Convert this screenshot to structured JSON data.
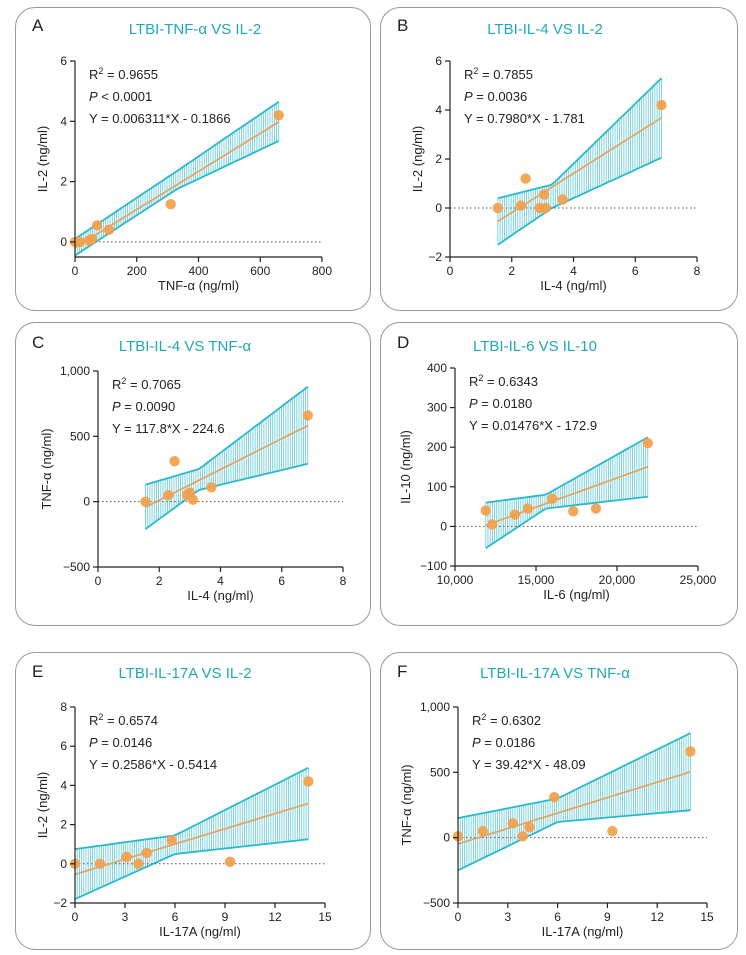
{
  "colors": {
    "band": "#2ab9cc",
    "fit": "#e1a566",
    "point": "#f2a04b",
    "title": "#1fa8b8"
  },
  "chart_data": [
    {
      "letter": "A",
      "title": "LTBI-TNF-α VS IL-2",
      "type": "scatter",
      "xlabel": "TNF-α (ng/ml)",
      "ylabel": "IL-2 (ng/ml)",
      "xlim": [
        0,
        800
      ],
      "ylim": [
        -0.5,
        6
      ],
      "xticks": [
        0,
        200,
        400,
        600,
        800
      ],
      "xtick_labels": [
        "0",
        "200",
        "400",
        "600",
        "800"
      ],
      "yticks": [
        0,
        2,
        4,
        6
      ],
      "ytick_labels": [
        "0",
        "2",
        "4",
        "6"
      ],
      "stats": {
        "r2_label": "R",
        "r2_sup": "2",
        "r2_value": " = 0.9655",
        "p_label": "P",
        "p_value": " < 0.0001",
        "equation": "Y = 0.006311*X - 0.1866"
      },
      "slope": 0.006311,
      "intercept": -0.1866,
      "fit_x": [
        0,
        660
      ],
      "ci_lower": [
        [
          0,
          -0.45
        ],
        [
          330,
          1.75
        ],
        [
          660,
          3.35
        ]
      ],
      "ci_upper": [
        [
          0,
          0.1
        ],
        [
          330,
          2.35
        ],
        [
          660,
          4.65
        ]
      ],
      "points": [
        [
          0,
          0
        ],
        [
          15,
          0
        ],
        [
          45,
          0.05
        ],
        [
          55,
          0.1
        ],
        [
          72,
          0.55
        ],
        [
          110,
          0.4
        ],
        [
          310,
          1.25
        ],
        [
          660,
          4.2
        ]
      ]
    },
    {
      "letter": "B",
      "title": "LTBI-IL-4 VS IL-2",
      "type": "scatter",
      "xlabel": "IL-4 (ng/ml)",
      "ylabel": "IL-2 (ng/ml)",
      "xlim": [
        0,
        8
      ],
      "ylim": [
        -2,
        6
      ],
      "xticks": [
        0,
        2,
        4,
        6,
        8
      ],
      "xtick_labels": [
        "0",
        "2",
        "4",
        "6",
        "8"
      ],
      "yticks": [
        -2,
        0,
        2,
        4,
        6
      ],
      "ytick_labels": [
        "−2",
        "0",
        "2",
        "4",
        "6"
      ],
      "stats": {
        "r2_label": "R",
        "r2_sup": "2",
        "r2_value": " = 0.7855",
        "p_label": "P",
        "p_value": " = 0.0036",
        "equation": "Y = 0.7980*X - 1.781"
      },
      "slope": 0.798,
      "intercept": -1.781,
      "fit_x": [
        1.55,
        6.85
      ],
      "ci_lower": [
        [
          1.55,
          -1.5
        ],
        [
          3.3,
          0.0
        ],
        [
          6.85,
          2.05
        ]
      ],
      "ci_upper": [
        [
          1.55,
          0.4
        ],
        [
          3.3,
          0.95
        ],
        [
          6.85,
          5.3
        ]
      ],
      "points": [
        [
          1.55,
          0
        ],
        [
          2.3,
          0.1
        ],
        [
          2.45,
          1.2
        ],
        [
          2.9,
          0
        ],
        [
          3.05,
          0.55
        ],
        [
          3.1,
          0
        ],
        [
          3.65,
          0.35
        ],
        [
          6.85,
          4.2
        ]
      ]
    },
    {
      "letter": "C",
      "title": "LTBI-IL-4 VS TNF-α",
      "type": "scatter",
      "xlabel": "IL-4 (ng/ml)",
      "ylabel": "TNF-α (ng/ml)",
      "xlim": [
        0,
        8
      ],
      "ylim": [
        -500,
        1000
      ],
      "xticks": [
        0,
        2,
        4,
        6,
        8
      ],
      "xtick_labels": [
        "0",
        "2",
        "4",
        "6",
        "8"
      ],
      "yticks": [
        -500,
        0,
        500,
        1000
      ],
      "ytick_labels": [
        "−500",
        "0",
        "500",
        "1,000"
      ],
      "stats": {
        "r2_label": "R",
        "r2_sup": "2",
        "r2_value": " = 0.7065",
        "p_label": "P",
        "p_value": " = 0.0090",
        "equation": "Y = 117.8*X - 224.6"
      },
      "slope": 117.8,
      "intercept": -224.6,
      "fit_x": [
        1.55,
        6.85
      ],
      "ci_lower": [
        [
          1.55,
          -210
        ],
        [
          3.3,
          90
        ],
        [
          6.85,
          290
        ]
      ],
      "ci_upper": [
        [
          1.55,
          130
        ],
        [
          3.3,
          250
        ],
        [
          6.85,
          880
        ]
      ],
      "points": [
        [
          1.55,
          0
        ],
        [
          2.3,
          50
        ],
        [
          2.5,
          310
        ],
        [
          2.9,
          50
        ],
        [
          3.0,
          70
        ],
        [
          3.1,
          15
        ],
        [
          3.7,
          110
        ],
        [
          6.85,
          660
        ]
      ]
    },
    {
      "letter": "D",
      "title": "LTBI-IL-6 VS IL-10",
      "type": "scatter",
      "xlabel": "IL-6 (ng/ml)",
      "ylabel": "IL-10 (ng/ml)",
      "xlim": [
        10000,
        25000
      ],
      "ylim": [
        -100,
        400
      ],
      "xticks": [
        10000,
        15000,
        20000,
        25000
      ],
      "xtick_labels": [
        "10,000",
        "15,000",
        "20,000",
        "25,000"
      ],
      "yticks": [
        -100,
        0,
        100,
        200,
        300,
        400
      ],
      "ytick_labels": [
        "−100",
        "0",
        "100",
        "200",
        "300",
        "400"
      ],
      "stats": {
        "r2_label": "R",
        "r2_sup": "2",
        "r2_value": " = 0.6343",
        "p_label": "P",
        "p_value": " = 0.0180",
        "equation": "Y = 0.01476*X - 172.9"
      },
      "slope": 0.01476,
      "intercept": -172.9,
      "fit_x": [
        11900,
        21900
      ],
      "ci_lower": [
        [
          11900,
          -55
        ],
        [
          15600,
          45
        ],
        [
          21900,
          75
        ]
      ],
      "ci_upper": [
        [
          11900,
          60
        ],
        [
          15600,
          80
        ],
        [
          21900,
          225
        ]
      ],
      "points": [
        [
          11900,
          40
        ],
        [
          12300,
          5
        ],
        [
          13700,
          30
        ],
        [
          14500,
          45
        ],
        [
          16000,
          70
        ],
        [
          17300,
          38
        ],
        [
          18700,
          45
        ],
        [
          21900,
          210
        ]
      ]
    },
    {
      "letter": "E",
      "title": "LTBI-IL-17A VS IL-2",
      "type": "scatter",
      "xlabel": "IL-17A (ng/ml)",
      "ylabel": "IL-2 (ng/ml)",
      "xlim": [
        0,
        15
      ],
      "ylim": [
        -2,
        8
      ],
      "xticks": [
        0,
        3,
        6,
        9,
        12,
        15
      ],
      "xtick_labels": [
        "0",
        "3",
        "6",
        "9",
        "12",
        "15"
      ],
      "yticks": [
        -2,
        0,
        2,
        4,
        6,
        8
      ],
      "ytick_labels": [
        "−2",
        "0",
        "2",
        "4",
        "6",
        "8"
      ],
      "stats": {
        "r2_label": "R",
        "r2_sup": "2",
        "r2_value": " = 0.6574",
        "p_label": "P",
        "p_value": " = 0.0146",
        "equation": "Y = 0.2586*X - 0.5414"
      },
      "slope": 0.2586,
      "intercept": -0.5414,
      "fit_x": [
        0,
        14
      ],
      "ci_lower": [
        [
          0,
          -1.8
        ],
        [
          6,
          0.5
        ],
        [
          14,
          1.25
        ]
      ],
      "ci_upper": [
        [
          0,
          0.75
        ],
        [
          6,
          1.45
        ],
        [
          14,
          4.9
        ]
      ],
      "points": [
        [
          0,
          0
        ],
        [
          1.5,
          0
        ],
        [
          3.1,
          0.35
        ],
        [
          3.8,
          0
        ],
        [
          4.3,
          0.55
        ],
        [
          5.8,
          1.2
        ],
        [
          9.3,
          0.1
        ],
        [
          14,
          4.2
        ]
      ]
    },
    {
      "letter": "F",
      "title": "LTBI-IL-17A VS TNF-α",
      "type": "scatter",
      "xlabel": "IL-17A (ng/ml)",
      "ylabel": "TNF-α (ng/ml)",
      "xlim": [
        0,
        15
      ],
      "ylim": [
        -500,
        1000
      ],
      "xticks": [
        0,
        3,
        6,
        9,
        12,
        15
      ],
      "xtick_labels": [
        "0",
        "3",
        "6",
        "9",
        "12",
        "15"
      ],
      "yticks": [
        -500,
        0,
        500,
        1000
      ],
      "ytick_labels": [
        "−500",
        "0",
        "500",
        "1,000"
      ],
      "stats": {
        "r2_label": "R",
        "r2_sup": "2",
        "r2_value": " = 0.6302",
        "p_label": "P",
        "p_value": " = 0.0186",
        "equation": "Y = 39.42*X - 48.09"
      },
      "slope": 39.42,
      "intercept": -48.09,
      "fit_x": [
        0,
        14
      ],
      "ci_lower": [
        [
          0,
          -250
        ],
        [
          6,
          120
        ],
        [
          14,
          210
        ]
      ],
      "ci_upper": [
        [
          0,
          150
        ],
        [
          6,
          300
        ],
        [
          14,
          800
        ]
      ],
      "points": [
        [
          0,
          10
        ],
        [
          1.5,
          50
        ],
        [
          3.3,
          110
        ],
        [
          3.9,
          10
        ],
        [
          4.3,
          80
        ],
        [
          5.8,
          310
        ],
        [
          9.3,
          50
        ],
        [
          14,
          660
        ]
      ]
    }
  ]
}
